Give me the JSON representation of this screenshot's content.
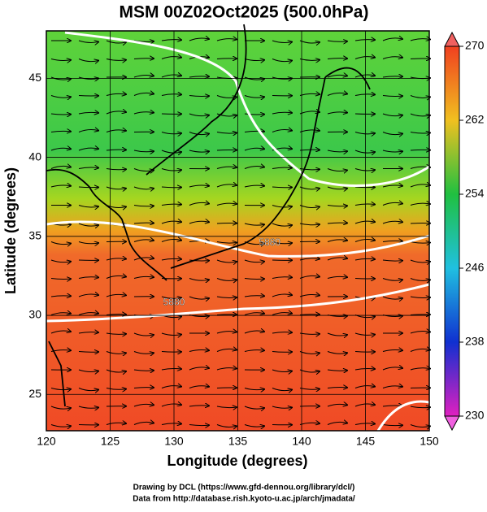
{
  "chart_data": {
    "type": "map",
    "title": "MSM 00Z02Oct2025 (500.0hPa)",
    "x_label": "Longitude (degrees)",
    "y_label": "Latitude  (degrees)",
    "xlim": [
      120,
      150
    ],
    "ylim": [
      22.7,
      48
    ],
    "xticks": [
      120,
      125,
      130,
      135,
      140,
      145,
      150
    ],
    "yticks": [
      25,
      30,
      35,
      40,
      45
    ],
    "colorbar": {
      "lim": [
        230,
        270
      ],
      "ticks": [
        230,
        238,
        246,
        254,
        262,
        270
      ]
    },
    "contour_labels": [
      {
        "text": "5880",
        "lon": 137.5,
        "lat": 34.6
      },
      {
        "text": "5880",
        "lon": 130,
        "lat": 30.8
      }
    ],
    "footer": [
      "Drawing by DCL (https://www.gfd-dennou.org/library/dcl/)",
      "Data from http://database.rish.kyoto-u.ac.jp/arch/jmadata/"
    ]
  }
}
